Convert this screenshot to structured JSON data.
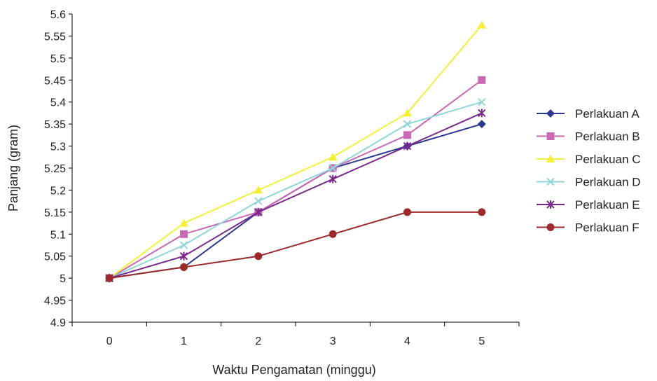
{
  "chart_data": {
    "type": "line",
    "title": "",
    "xlabel": "Waktu Pengamatan (minggu)",
    "ylabel": "Panjang (gram)",
    "x": [
      0,
      1,
      2,
      3,
      4,
      5
    ],
    "x_tick_labels": [
      "0",
      "1",
      "2",
      "3",
      "4",
      "5"
    ],
    "ylim": [
      4.9,
      5.6
    ],
    "y_tick_labels": [
      "4.9",
      "4.95",
      "5",
      "5.05",
      "5.1",
      "5.15",
      "5.2",
      "5.25",
      "5.3",
      "5.35",
      "5.4",
      "5.45",
      "5.5",
      "5.55",
      "5.6"
    ],
    "grid": false,
    "legend_position": "right",
    "series": [
      {
        "name": "Perlakuan A",
        "color": "#2b3990",
        "marker": "diamond",
        "values": [
          5.0,
          5.025,
          5.15,
          5.25,
          5.3,
          5.35
        ]
      },
      {
        "name": "Perlakuan B",
        "color": "#c969b6",
        "marker": "square",
        "values": [
          5.0,
          5.1,
          5.15,
          5.25,
          5.325,
          5.45
        ]
      },
      {
        "name": "Perlakuan C",
        "color": "#f5ef3a",
        "marker": "triangle",
        "values": [
          5.0,
          5.125,
          5.2,
          5.275,
          5.375,
          5.575
        ]
      },
      {
        "name": "Perlakuan D",
        "color": "#8fd6d8",
        "marker": "x",
        "values": [
          5.0,
          5.075,
          5.175,
          5.25,
          5.35,
          5.4
        ]
      },
      {
        "name": "Perlakuan E",
        "color": "#7a2a8c",
        "marker": "star",
        "values": [
          5.0,
          5.05,
          5.15,
          5.225,
          5.3,
          5.375
        ]
      },
      {
        "name": "Perlakuan F",
        "color": "#9c2a2a",
        "marker": "circle",
        "values": [
          5.0,
          5.025,
          5.05,
          5.1,
          5.15,
          5.15
        ]
      }
    ]
  }
}
